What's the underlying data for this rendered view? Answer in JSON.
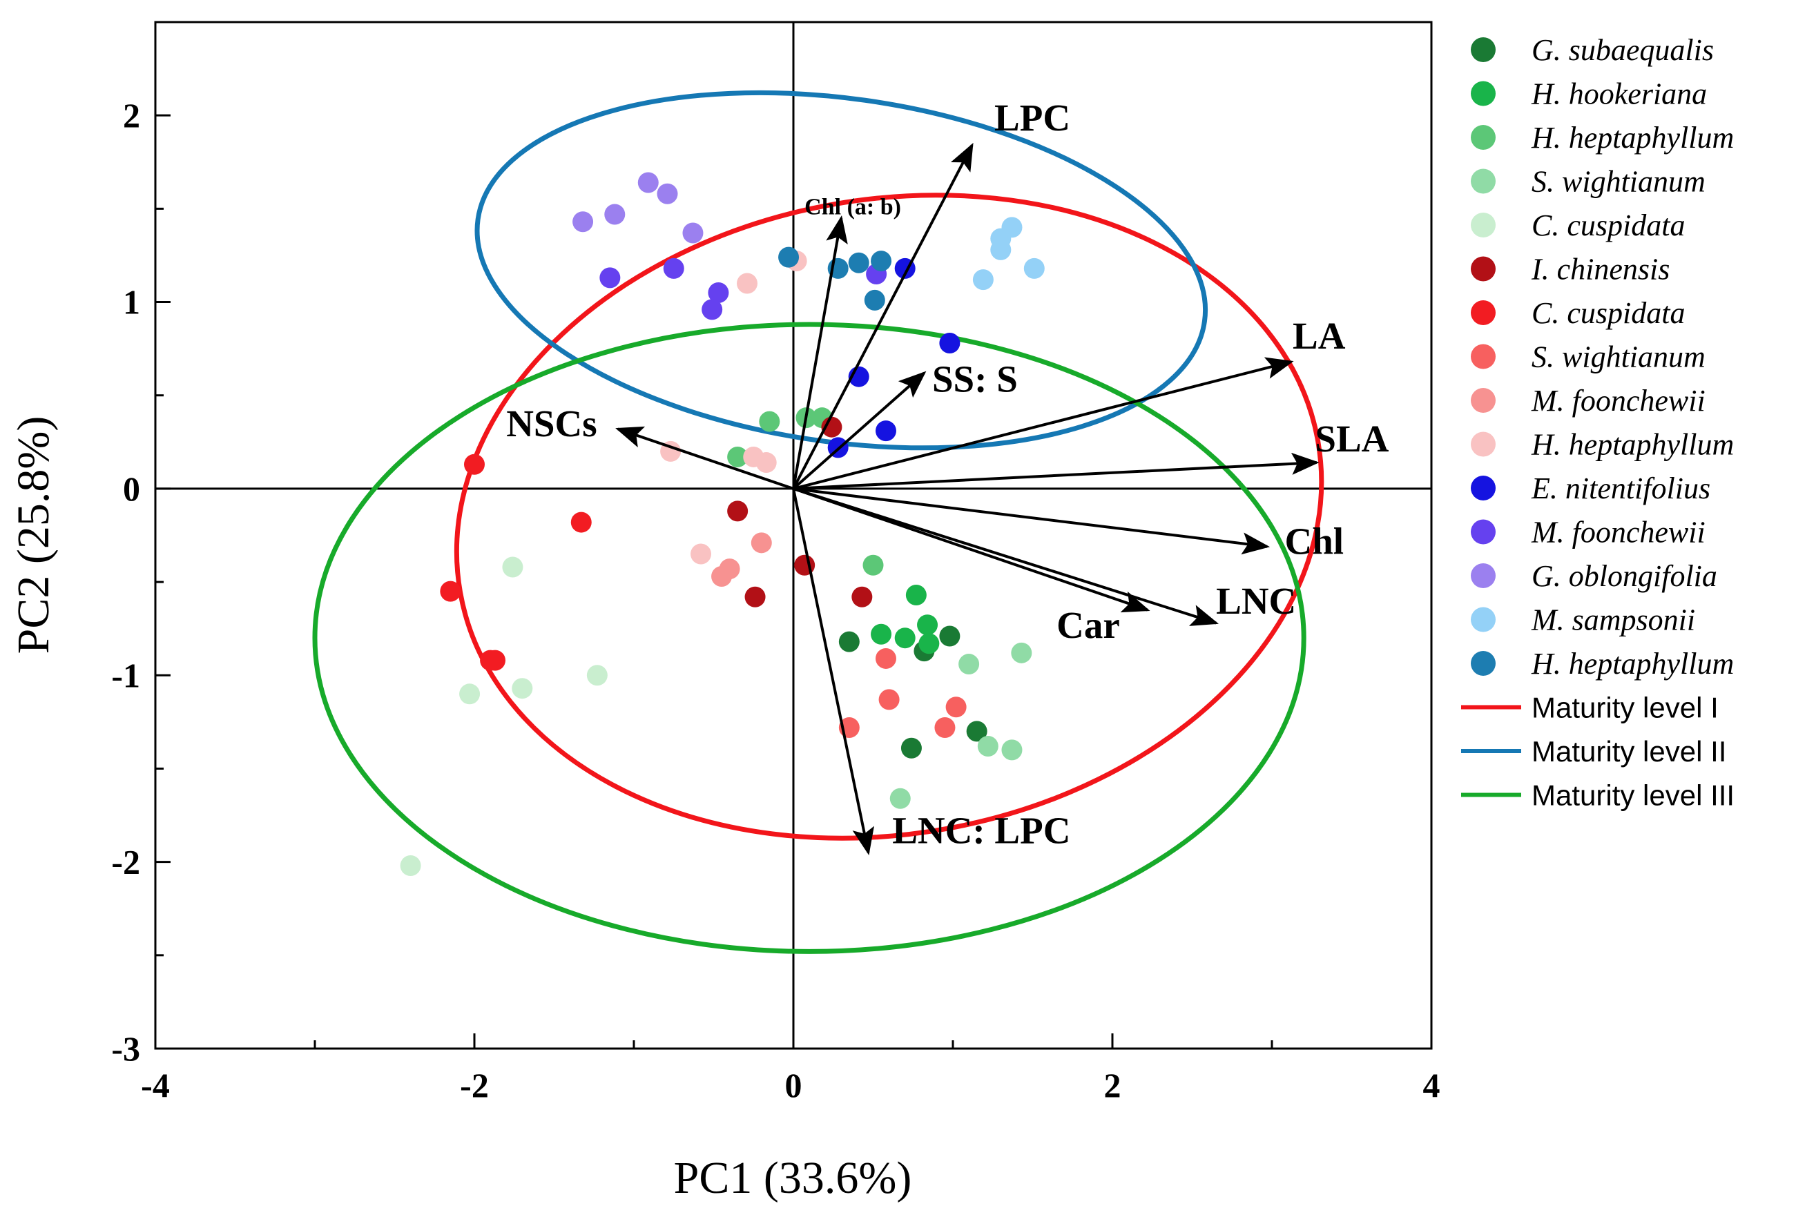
{
  "chart_data": {
    "type": "scatter",
    "subtype": "pca-biplot",
    "xlabel": "PC1 (33.6%)",
    "ylabel": "PC2 (25.8%)",
    "xlim": [
      -4,
      4
    ],
    "ylim": [
      -3,
      2.5
    ],
    "xticks": [
      -4,
      -2,
      0,
      2,
      4
    ],
    "yticks": [
      -3,
      -2,
      -1,
      0,
      1,
      2
    ],
    "xtick_labels": [
      "-4",
      "-2",
      "0",
      "2",
      "4"
    ],
    "ytick_labels": [
      "-3",
      "-2",
      "-1",
      "0",
      "1",
      "2"
    ],
    "legend_position": "right",
    "series": [
      {
        "name": "G. subaequalis",
        "color": "#1a7a34",
        "points": [
          [
            0.35,
            -0.82
          ],
          [
            0.82,
            -0.87
          ],
          [
            0.98,
            -0.79
          ],
          [
            1.15,
            -1.3
          ],
          [
            0.74,
            -1.39
          ]
        ]
      },
      {
        "name": "H. hookeriana",
        "color": "#19b44a",
        "points": [
          [
            0.77,
            -0.57
          ],
          [
            0.55,
            -0.78
          ],
          [
            0.7,
            -0.8
          ],
          [
            0.84,
            -0.73
          ],
          [
            0.85,
            -0.83
          ]
        ]
      },
      {
        "name": "H. heptaphyllum",
        "color": "#5cc777",
        "points": [
          [
            -0.15,
            0.36
          ],
          [
            -0.35,
            0.17
          ],
          [
            0.08,
            0.38
          ],
          [
            0.18,
            0.38
          ],
          [
            0.5,
            -0.41
          ]
        ]
      },
      {
        "name": "S. wightianum",
        "color": "#90dba6",
        "points": [
          [
            1.1,
            -0.94
          ],
          [
            1.43,
            -0.88
          ],
          [
            1.22,
            -1.38
          ],
          [
            1.37,
            -1.4
          ],
          [
            0.67,
            -1.66
          ]
        ]
      },
      {
        "name": "C. cuspidata",
        "color": "#c9eecf",
        "points": [
          [
            -1.76,
            -0.42
          ],
          [
            -2.03,
            -1.1
          ],
          [
            -1.7,
            -1.07
          ],
          [
            -1.23,
            -1.0
          ],
          [
            -2.4,
            -2.02
          ]
        ]
      },
      {
        "name": "I. chinensis",
        "color": "#b21016",
        "points": [
          [
            0.24,
            0.33
          ],
          [
            -0.35,
            -0.12
          ],
          [
            -0.24,
            -0.58
          ],
          [
            0.07,
            -0.41
          ],
          [
            0.43,
            -0.58
          ]
        ]
      },
      {
        "name": "C. cuspidata",
        "color": "#f21c22",
        "points": [
          [
            -2.0,
            0.13
          ],
          [
            -1.33,
            -0.18
          ],
          [
            -2.15,
            -0.55
          ],
          [
            -1.9,
            -0.92
          ],
          [
            -1.87,
            -0.92
          ]
        ]
      },
      {
        "name": "S. wightianum",
        "color": "#f7605f",
        "points": [
          [
            0.58,
            -0.91
          ],
          [
            0.6,
            -1.13
          ],
          [
            1.02,
            -1.17
          ],
          [
            0.95,
            -1.28
          ],
          [
            0.35,
            -1.28
          ]
        ]
      },
      {
        "name": "M. foonchewii",
        "color": "#f79291",
        "points": [
          [
            -0.2,
            -0.29
          ],
          [
            -0.4,
            -0.43
          ],
          [
            -0.45,
            -0.47
          ]
        ]
      },
      {
        "name": "H. heptaphyllum",
        "color": "#f9c2c2",
        "points": [
          [
            -0.29,
            1.1
          ],
          [
            -0.77,
            0.2
          ],
          [
            -0.25,
            0.17
          ],
          [
            -0.17,
            0.14
          ],
          [
            -0.58,
            -0.35
          ],
          [
            0.02,
            1.22
          ]
        ]
      },
      {
        "name": "E. nitentifolius",
        "color": "#1513e0",
        "points": [
          [
            0.7,
            1.18
          ],
          [
            0.98,
            0.78
          ],
          [
            0.41,
            0.6
          ],
          [
            0.58,
            0.31
          ],
          [
            0.28,
            0.22
          ]
        ]
      },
      {
        "name": "M. foonchewii",
        "color": "#6541ef",
        "points": [
          [
            -1.15,
            1.13
          ],
          [
            -0.75,
            1.18
          ],
          [
            -0.47,
            1.05
          ],
          [
            -0.51,
            0.96
          ],
          [
            0.52,
            1.15
          ]
        ]
      },
      {
        "name": "G. oblongifolia",
        "color": "#9b80ef",
        "points": [
          [
            -0.91,
            1.64
          ],
          [
            -0.79,
            1.58
          ],
          [
            -1.12,
            1.47
          ],
          [
            -1.32,
            1.43
          ],
          [
            -0.63,
            1.37
          ]
        ]
      },
      {
        "name": "M. sampsonii",
        "color": "#94d1f7",
        "points": [
          [
            1.37,
            1.4
          ],
          [
            1.3,
            1.34
          ],
          [
            1.3,
            1.28
          ],
          [
            1.51,
            1.18
          ],
          [
            1.19,
            1.12
          ]
        ]
      },
      {
        "name": "H. heptaphyllum",
        "color": "#1d7db1",
        "points": [
          [
            -0.03,
            1.24
          ],
          [
            0.28,
            1.18
          ],
          [
            0.41,
            1.21
          ],
          [
            0.55,
            1.22
          ],
          [
            0.51,
            1.01
          ]
        ]
      }
    ],
    "vectors": [
      {
        "label": "LPC",
        "x": 1.12,
        "y": 1.84
      },
      {
        "label": "Chl (a: b)",
        "x": 0.3,
        "y": 1.45
      },
      {
        "label": "SS: S",
        "x": 0.82,
        "y": 0.62
      },
      {
        "label": "LA",
        "x": 3.12,
        "y": 0.68
      },
      {
        "label": "SLA",
        "x": 3.28,
        "y": 0.14
      },
      {
        "label": "Chl",
        "x": 2.97,
        "y": -0.31
      },
      {
        "label": "LNC",
        "x": 2.65,
        "y": -0.72
      },
      {
        "label": "Car",
        "x": 2.22,
        "y": -0.65
      },
      {
        "label": "LNC: LPC",
        "x": 0.47,
        "y": -1.95
      },
      {
        "label": "NSCs",
        "x": -1.1,
        "y": 0.32
      }
    ],
    "ellipses": [
      {
        "name": "Maturity level I",
        "color": "#f2151a",
        "cx": 0.6,
        "cy": -0.15,
        "rx": 2.73,
        "ry": 1.7,
        "angle_deg": 10
      },
      {
        "name": "Maturity level II",
        "color": "#1578b4",
        "cx": 0.3,
        "cy": 1.17,
        "rx": 2.3,
        "ry": 0.92,
        "angle_deg": -8
      },
      {
        "name": "Maturity level III",
        "color": "#17aa2a",
        "cx": 0.1,
        "cy": -0.8,
        "rx": 3.1,
        "ry": 1.68,
        "angle_deg": 0
      }
    ]
  }
}
